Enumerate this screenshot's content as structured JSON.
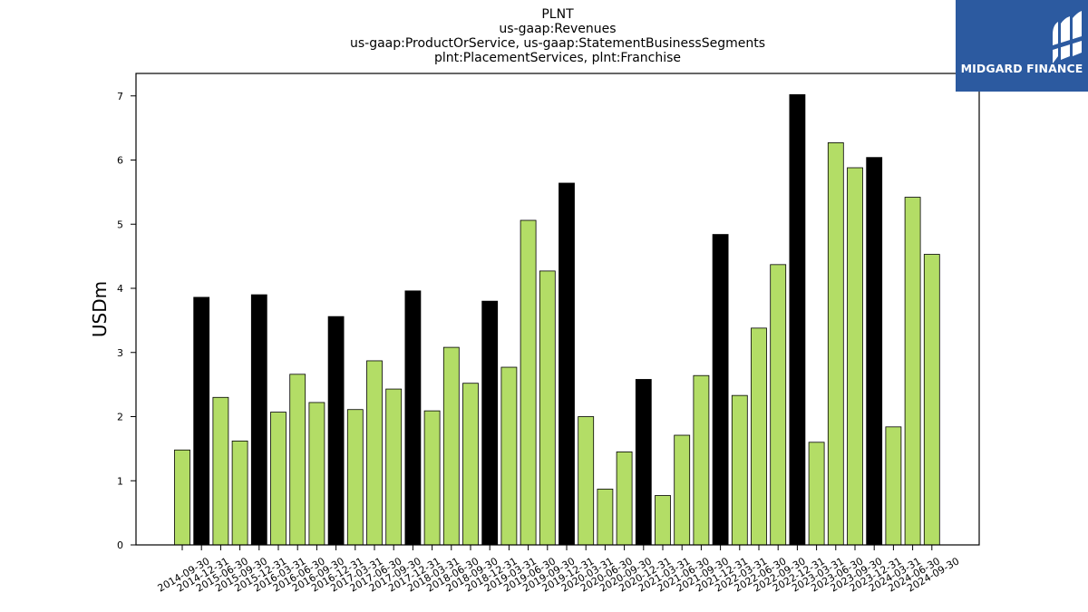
{
  "chart_data": {
    "type": "bar",
    "title_lines": [
      "PLNT",
      "us-gaap:Revenues",
      "us-gaap:ProductOrService, us-gaap:StatementBusinessSegments",
      "plnt:PlacementServices, plnt:Franchise"
    ],
    "ylabel": "USDm",
    "xlabel": "",
    "ylim": [
      0,
      7.35
    ],
    "yticks": [
      "0",
      "1",
      "2",
      "3",
      "4",
      "5",
      "6",
      "7"
    ],
    "grid": false,
    "categories": [
      "2014-09-30",
      "2014-12-31",
      "2015-06-30",
      "2015-09-30",
      "2015-12-31",
      "2016-03-31",
      "2016-06-30",
      "2016-09-30",
      "2016-12-31",
      "2017-03-31",
      "2017-06-30",
      "2017-09-30",
      "2017-12-31",
      "2018-03-31",
      "2018-06-30",
      "2018-09-30",
      "2018-12-31",
      "2019-03-31",
      "2019-06-30",
      "2019-09-30",
      "2019-12-31",
      "2020-03-31",
      "2020-06-30",
      "2020-09-30",
      "2020-12-31",
      "2021-03-31",
      "2021-06-30",
      "2021-09-30",
      "2021-12-31",
      "2022-03-31",
      "2022-06-30",
      "2022-09-30",
      "2022-12-31",
      "2023-03-31",
      "2023-06-30",
      "2023-09-30",
      "2023-12-31",
      "2024-03-31",
      "2024-06-30",
      "2024-09-30"
    ],
    "values": [
      1.48,
      3.86,
      2.3,
      1.62,
      3.9,
      2.07,
      2.66,
      2.22,
      3.56,
      2.11,
      2.87,
      2.43,
      3.96,
      2.09,
      3.08,
      2.52,
      3.8,
      2.77,
      5.06,
      4.27,
      5.64,
      2.0,
      0.87,
      1.45,
      2.58,
      0.77,
      1.71,
      2.64,
      4.84,
      2.33,
      3.38,
      4.37,
      7.02,
      1.6,
      6.27,
      5.88,
      6.04,
      1.84,
      5.42,
      4.53
    ],
    "bar_colors": [
      "#b3dd66",
      "#000000",
      "#b3dd66",
      "#b3dd66",
      "#000000",
      "#b3dd66",
      "#b3dd66",
      "#b3dd66",
      "#000000",
      "#b3dd66",
      "#b3dd66",
      "#b3dd66",
      "#000000",
      "#b3dd66",
      "#b3dd66",
      "#b3dd66",
      "#000000",
      "#b3dd66",
      "#b3dd66",
      "#b3dd66",
      "#000000",
      "#b3dd66",
      "#b3dd66",
      "#b3dd66",
      "#000000",
      "#b3dd66",
      "#b3dd66",
      "#b3dd66",
      "#000000",
      "#b3dd66",
      "#b3dd66",
      "#b3dd66",
      "#000000",
      "#b3dd66",
      "#b3dd66",
      "#b3dd66",
      "#000000",
      "#b3dd66",
      "#b3dd66",
      "#b3dd66"
    ]
  },
  "logo": {
    "text": "MIDGARD FINANCE",
    "background": "#2c5aa0",
    "icon": "midgard-logo-icon"
  }
}
